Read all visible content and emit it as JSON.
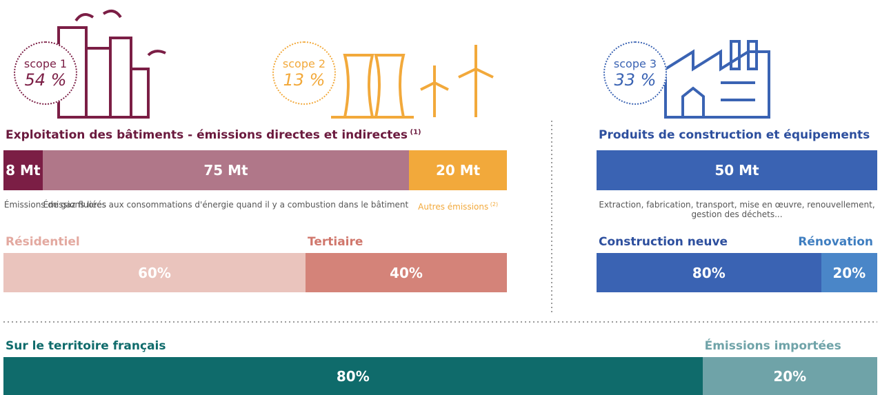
{
  "scopes": [
    {
      "label": "scope 1",
      "percent": "54 %",
      "color": "#7b1e45"
    },
    {
      "label": "scope 2",
      "percent": "13 %",
      "color": "#f2a93b"
    },
    {
      "label": "scope 3",
      "percent": "33 %",
      "color": "#3a63b3"
    }
  ],
  "operation": {
    "title": "Exploitation des bâtiments - émissions directes et indirectes",
    "note": "(1)",
    "color": "#6b1a3e",
    "segments": [
      {
        "value": 8,
        "label": "8 Mt",
        "caption": "Émissions de gaz fluorés",
        "color": "#7b1e45"
      },
      {
        "value": 75,
        "label": "75 Mt",
        "caption": "Émissions liées aux consommations d'énergie quand il y a combustion dans le bâtiment",
        "color": "#b07789"
      },
      {
        "value": 20,
        "label": "20 Mt",
        "caption": "Autres émissions",
        "note": "(2)",
        "color": "#f2a93b"
      }
    ]
  },
  "sectors": [
    {
      "name": "Résidentiel",
      "value": 60,
      "label": "60%",
      "color": "#eac4bd",
      "name_color": "#e3a9a0"
    },
    {
      "name": "Tertiaire",
      "value": 40,
      "label": "40%",
      "color": "#d48379",
      "name_color": "#d0776c"
    }
  ],
  "products": {
    "title": "Produits de construction et équipements",
    "color": "#2d4f9e",
    "segments": [
      {
        "value": 50,
        "label": "50 Mt",
        "caption": "Extraction, fabrication, transport, mise en œuvre, renouvellement, gestion des déchets...",
        "color": "#3a63b3"
      }
    ]
  },
  "works": [
    {
      "name": "Construction neuve",
      "value": 80,
      "label": "80%",
      "color": "#3a63b3",
      "name_color": "#2d4f9e"
    },
    {
      "name": "Rénovation",
      "value": 20,
      "label": "20%",
      "color": "#4a86c8",
      "name_color": "#3f7ec0"
    }
  ],
  "origin": [
    {
      "name": "Sur le territoire français",
      "value": 80,
      "label": "80%",
      "color": "#0f6b6b",
      "name_color": "#0f6b6b"
    },
    {
      "name": "Émissions importées",
      "value": 20,
      "label": "20%",
      "color": "#6fa3a8",
      "name_color": "#6fa3a8"
    }
  ]
}
